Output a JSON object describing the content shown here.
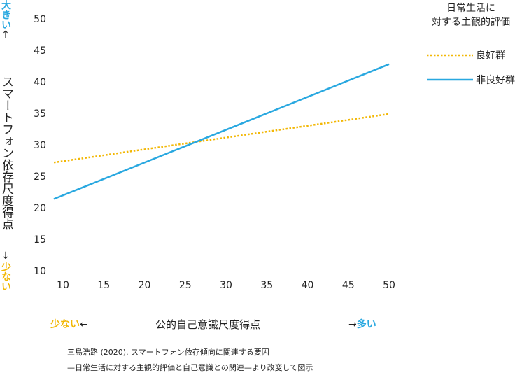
{
  "chart_data": {
    "type": "line",
    "xlabel": "公的自己意識尺度得点",
    "ylabel": "スマートフォン依存尺度得点",
    "x_ticks": [
      10,
      15,
      20,
      25,
      30,
      35,
      40,
      45,
      50
    ],
    "y_ticks": [
      10,
      15,
      20,
      25,
      30,
      35,
      40,
      45,
      50
    ],
    "xlim": [
      10,
      50
    ],
    "ylim": [
      10,
      50
    ],
    "grid": false,
    "legend_title": [
      "日常生活に",
      "対する主観的評価"
    ],
    "legend_position": "top-right",
    "series": [
      {
        "name": "良好群",
        "style": "dotted",
        "color": "#f2b705",
        "x": [
          10,
          50
        ],
        "y": [
          27.2,
          34.9
        ]
      },
      {
        "name": "非良好群",
        "style": "solid",
        "color": "#29a8e0",
        "x": [
          10,
          50
        ],
        "y": [
          21.4,
          42.8
        ]
      }
    ]
  },
  "y_axis_top": {
    "word": "大きい",
    "arrow": "↑"
  },
  "y_axis_bottom": {
    "arrow": "↓",
    "word": "少ない"
  },
  "x_axis_left": {
    "word": "少ない",
    "arrow": "←"
  },
  "x_axis_right": {
    "arrow": "→",
    "word": "多い"
  },
  "source": {
    "line1": "三島浩路 (2020). スマートフォン依存傾向に関連する要因",
    "line2": "—日常生活に対する主観的評価と自己意識との関連—より改変して図示"
  },
  "colors": {
    "accent_blue": "#29a8e0",
    "accent_yellow": "#f2b705"
  }
}
